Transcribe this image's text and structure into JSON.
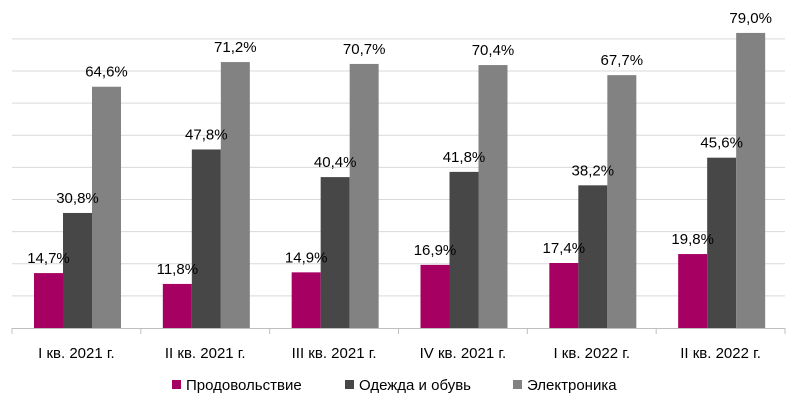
{
  "chart_data": {
    "type": "bar",
    "categories": [
      "I кв. 2021 г.",
      "II кв. 2021 г.",
      "III кв. 2021 г.",
      "IV кв. 2021 г.",
      "I кв. 2022 г.",
      "II кв. 2022 г."
    ],
    "series": [
      {
        "name": "Продовольствие",
        "color": "#a50062",
        "values": [
          14.7,
          11.8,
          14.9,
          16.9,
          17.4,
          19.8
        ],
        "labels": [
          "14,7%",
          "11,8%",
          "14,9%",
          "16,9%",
          "17,4%",
          "19,8%"
        ]
      },
      {
        "name": "Одежда и обувь",
        "color": "#474747",
        "values": [
          30.8,
          47.8,
          40.4,
          41.8,
          38.2,
          45.6
        ],
        "labels": [
          "30,8%",
          "47,8%",
          "40,4%",
          "41,8%",
          "38,2%",
          "45,6%"
        ]
      },
      {
        "name": "Электроника",
        "color": "#828282",
        "values": [
          64.6,
          71.2,
          70.7,
          70.4,
          67.7,
          79.0
        ],
        "labels": [
          "64,6%",
          "71,2%",
          "70,7%",
          "70,4%",
          "67,7%",
          "79,0%"
        ]
      }
    ],
    "ylim": [
      0,
      80
    ],
    "y_gridline_step": 8.6,
    "grid": true,
    "legend_position": "bottom",
    "title": "",
    "xlabel": "",
    "ylabel": ""
  }
}
